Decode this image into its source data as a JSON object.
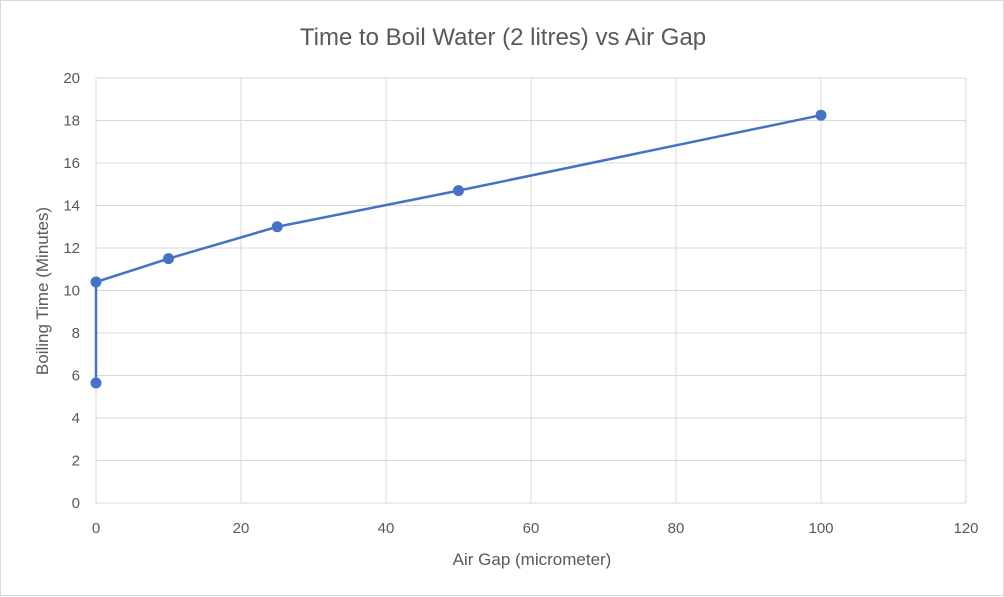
{
  "chart_data": {
    "type": "scatter",
    "title": "Time to Boil Water (2 litres) vs Air Gap",
    "xlabel": "Air Gap (micrometer)",
    "ylabel": "Boiling Time (Minutes)",
    "xlim": [
      0,
      120
    ],
    "ylim": [
      0,
      20
    ],
    "xticks": [
      0,
      20,
      40,
      60,
      80,
      100,
      120
    ],
    "yticks": [
      0,
      2,
      4,
      6,
      8,
      10,
      12,
      14,
      16,
      18,
      20
    ],
    "grid": true,
    "legend": "none",
    "series": [
      {
        "color": "#4472c4",
        "x": [
          0,
          0,
          10,
          25,
          50,
          100
        ],
        "y": [
          5.65,
          10.4,
          11.5,
          13.0,
          14.7,
          18.25
        ]
      }
    ]
  }
}
